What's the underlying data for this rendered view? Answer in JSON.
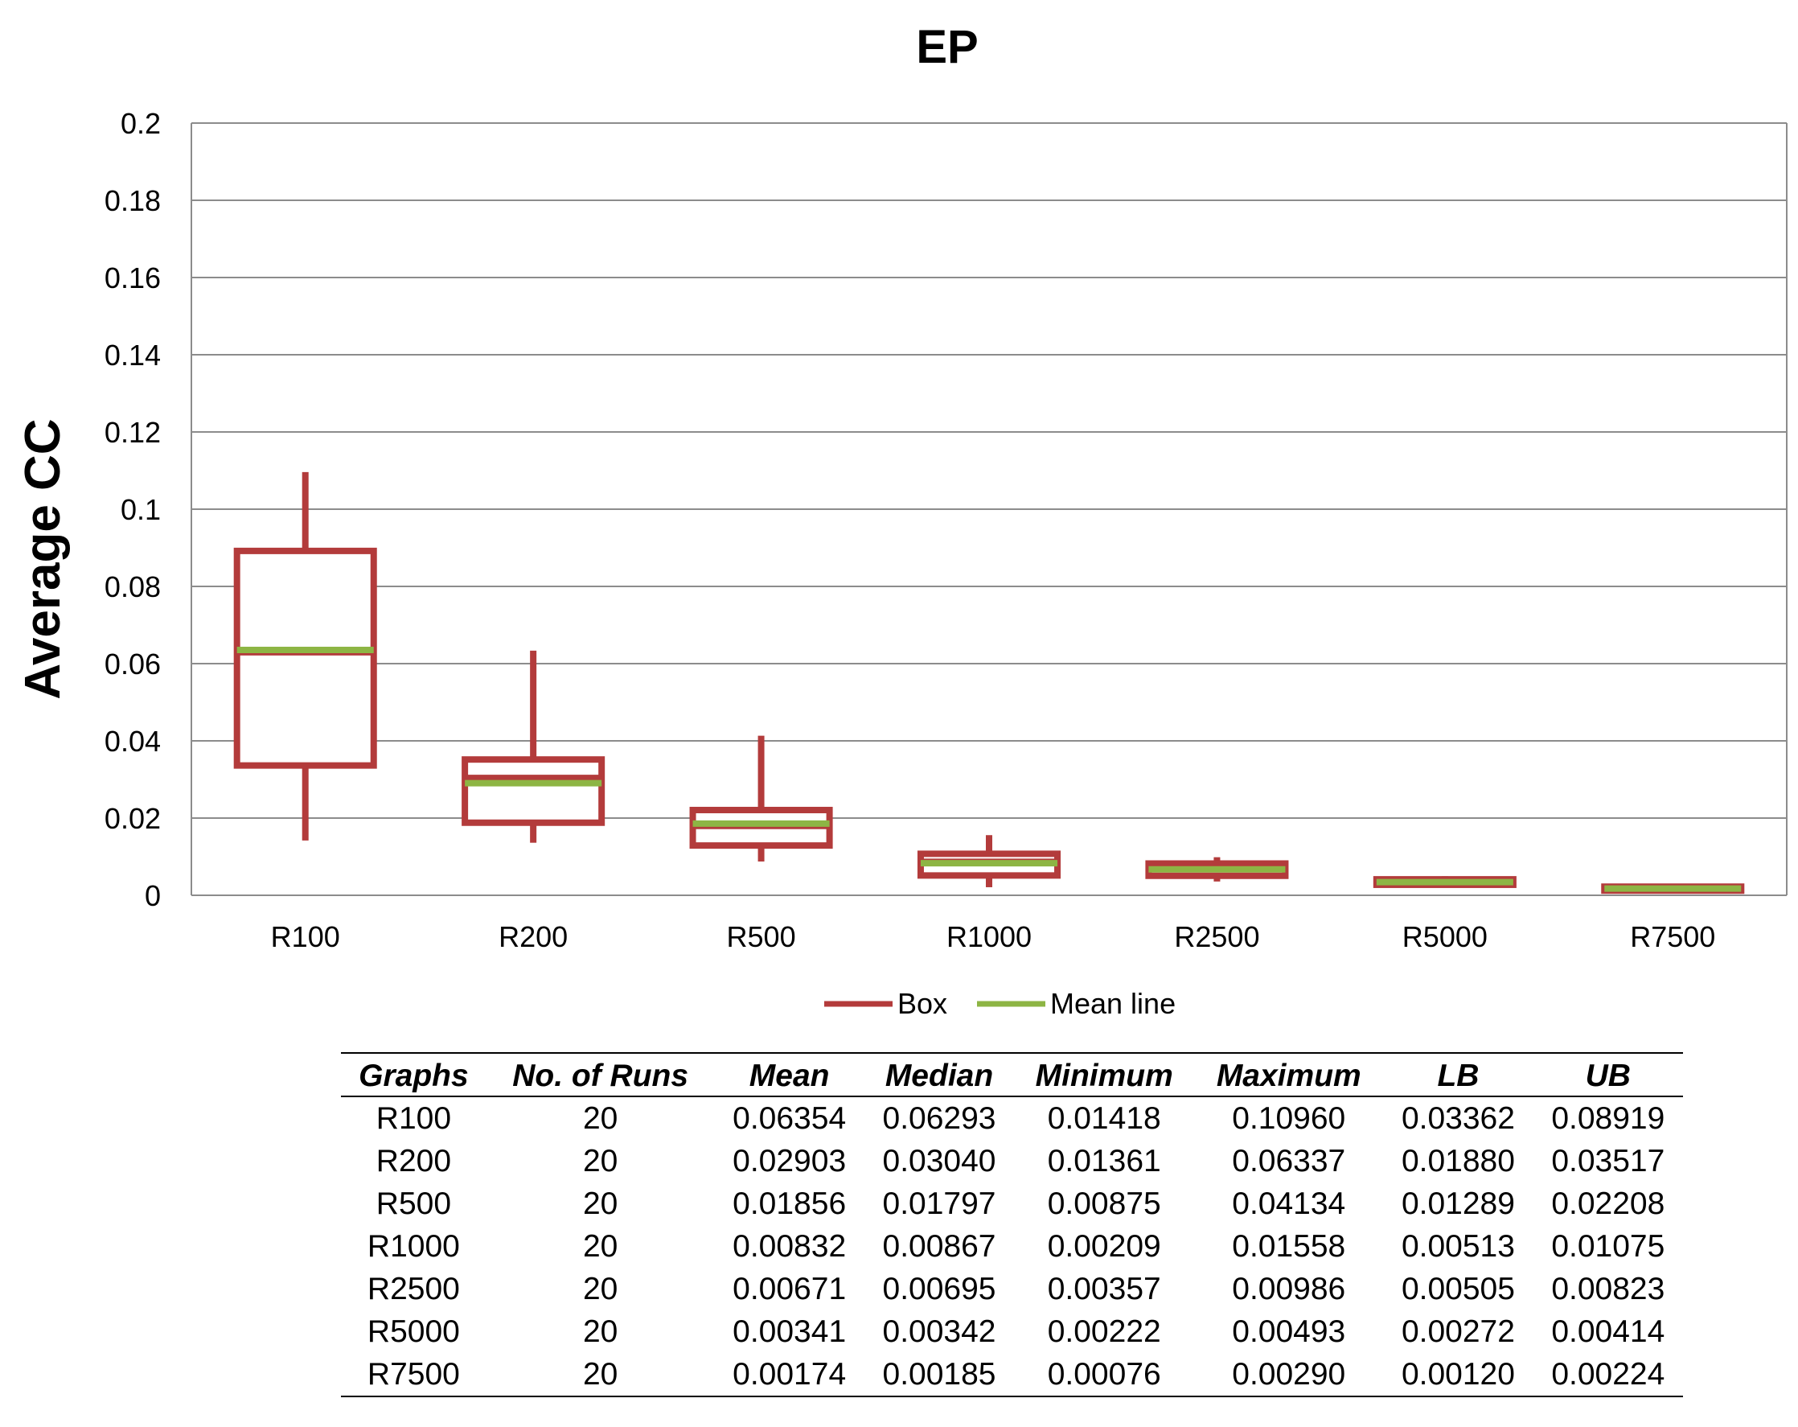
{
  "chart_data": {
    "type": "boxplot",
    "title": "EP",
    "xlabel": "",
    "ylabel": "Average CC",
    "ylim": [
      0,
      0.2
    ],
    "yticks": [
      "0",
      "0.02",
      "0.04",
      "0.06",
      "0.08",
      "0.1",
      "0.12",
      "0.14",
      "0.16",
      "0.18",
      "0.2"
    ],
    "grid": true,
    "legend_position": "bottom",
    "categories": [
      "R100",
      "R200",
      "R500",
      "R1000",
      "R2500",
      "R5000",
      "R7500"
    ],
    "series": [
      {
        "name": "Box",
        "color": "#b33b3b"
      },
      {
        "name": "Mean line",
        "color": "#8db544"
      }
    ],
    "boxes": [
      {
        "category": "R100",
        "mean": 0.06354,
        "median": 0.06293,
        "min": 0.01418,
        "max": 0.1096,
        "lb": 0.03362,
        "ub": 0.08919
      },
      {
        "category": "R200",
        "mean": 0.02903,
        "median": 0.0304,
        "min": 0.01361,
        "max": 0.06337,
        "lb": 0.0188,
        "ub": 0.03517
      },
      {
        "category": "R500",
        "mean": 0.01856,
        "median": 0.01797,
        "min": 0.00875,
        "max": 0.04134,
        "lb": 0.01289,
        "ub": 0.02208
      },
      {
        "category": "R1000",
        "mean": 0.00832,
        "median": 0.00867,
        "min": 0.00209,
        "max": 0.01558,
        "lb": 0.00513,
        "ub": 0.01075
      },
      {
        "category": "R2500",
        "mean": 0.00671,
        "median": 0.00695,
        "min": 0.00357,
        "max": 0.00986,
        "lb": 0.00505,
        "ub": 0.00823
      },
      {
        "category": "R5000",
        "mean": 0.00341,
        "median": 0.00342,
        "min": 0.00222,
        "max": 0.00493,
        "lb": 0.00272,
        "ub": 0.00414
      },
      {
        "category": "R7500",
        "mean": 0.00174,
        "median": 0.00185,
        "min": 0.00076,
        "max": 0.0029,
        "lb": 0.0012,
        "ub": 0.00224
      }
    ]
  },
  "table": {
    "headers": [
      "Graphs",
      "No. of Runs",
      "Mean",
      "Median",
      "Minimum",
      "Maximum",
      "LB",
      "UB"
    ],
    "rows": [
      [
        "R100",
        "20",
        "0.06354",
        "0.06293",
        "0.01418",
        "0.10960",
        "0.03362",
        "0.08919"
      ],
      [
        "R200",
        "20",
        "0.02903",
        "0.03040",
        "0.01361",
        "0.06337",
        "0.01880",
        "0.03517"
      ],
      [
        "R500",
        "20",
        "0.01856",
        "0.01797",
        "0.00875",
        "0.04134",
        "0.01289",
        "0.02208"
      ],
      [
        "R1000",
        "20",
        "0.00832",
        "0.00867",
        "0.00209",
        "0.01558",
        "0.00513",
        "0.01075"
      ],
      [
        "R2500",
        "20",
        "0.00671",
        "0.00695",
        "0.00357",
        "0.00986",
        "0.00505",
        "0.00823"
      ],
      [
        "R5000",
        "20",
        "0.00341",
        "0.00342",
        "0.00222",
        "0.00493",
        "0.00272",
        "0.00414"
      ],
      [
        "R7500",
        "20",
        "0.00174",
        "0.00185",
        "0.00076",
        "0.00290",
        "0.00120",
        "0.00224"
      ]
    ]
  }
}
